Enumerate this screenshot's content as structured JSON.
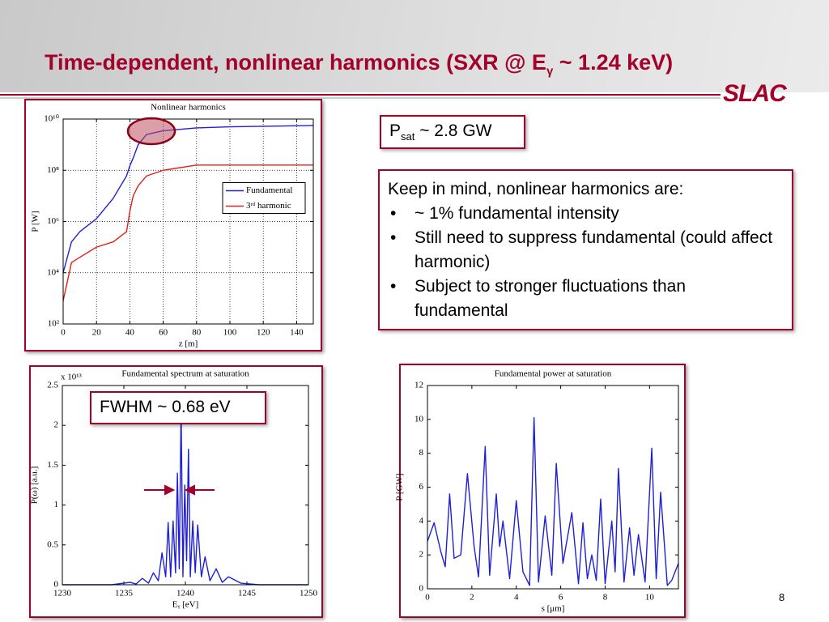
{
  "title": [
    "Time-dependent, nonlinear harmonics (SXR @ E",
    "γ",
    " ~ 1.24 keV)"
  ],
  "logo": "SLAC",
  "psat": [
    "P",
    "sat",
    " ~ 2.8 GW"
  ],
  "notes": {
    "heading": "Keep in mind, nonlinear harmonics are:",
    "bullets": [
      "~ 1% fundamental intensity",
      "Still need to suppress fundamental (could affect harmonic)",
      "Subject to stronger fluctuations than fundamental"
    ]
  },
  "fwhm": "FWHM ~ 0.68 eV",
  "page_number": "8",
  "chart_data": [
    {
      "type": "line",
      "title": "Nonlinear harmonics",
      "x_label": "z [m]",
      "y_label": "P [W]",
      "log_y": true,
      "grid": true,
      "legend": "right",
      "xlim": [
        0,
        150
      ],
      "xticks": [
        0,
        20,
        40,
        60,
        80,
        100,
        120,
        140
      ],
      "ylim": [
        100,
        10000000000
      ],
      "yticks": [
        {
          "value": 100,
          "label": "10²"
        },
        {
          "value": 10000,
          "label": "10⁴"
        },
        {
          "value": 1000000,
          "label": "10⁶"
        },
        {
          "value": 100000000,
          "label": "10⁸"
        },
        {
          "value": 10000000000,
          "label": "10¹⁰"
        }
      ],
      "x": [
        0,
        5,
        10,
        20,
        30,
        38,
        40,
        42,
        45,
        50,
        60,
        80,
        100,
        150
      ],
      "series": [
        {
          "name": "Fundamental",
          "color": "#1f1fd6",
          "values": [
            10000,
            160000,
            400000,
            1300000,
            8000000,
            60000000,
            150000000,
            300000000,
            1000000000,
            2500000000,
            3500000000,
            4500000000,
            5000000000,
            5600000000
          ]
        },
        {
          "name": "3ʳᵈ harmonic",
          "color": "#e0201a",
          "values": [
            800,
            25000,
            40000,
            100000,
            160000,
            400000,
            2500000,
            10000000,
            25000000,
            60000000,
            100000000,
            160000000,
            160000000,
            160000000
          ]
        }
      ]
    },
    {
      "type": "line",
      "title": "Fundamental spectrum at saturation",
      "x_label": "Eᵧ [eV]",
      "y_label": "P(ω) [a.u.]",
      "y_multiplier": "x 10¹³",
      "log_y": false,
      "grid": false,
      "xlim": [
        1230,
        1250
      ],
      "xticks": [
        1230,
        1235,
        1240,
        1245,
        1250
      ],
      "ylim": [
        0,
        2.5
      ],
      "yticks": [
        0,
        0.5,
        1,
        1.5,
        2,
        2.5
      ],
      "x": [
        1230,
        1234,
        1235.5,
        1236,
        1236.5,
        1237,
        1237.4,
        1237.8,
        1238.1,
        1238.4,
        1238.6,
        1238.8,
        1239.0,
        1239.2,
        1239.35,
        1239.5,
        1239.65,
        1239.8,
        1239.95,
        1240.1,
        1240.25,
        1240.4,
        1240.6,
        1240.8,
        1241.0,
        1241.3,
        1241.6,
        1242,
        1242.5,
        1243,
        1243.5,
        1244.5,
        1246,
        1250
      ],
      "series": [
        {
          "color": "#1f1fd6",
          "values": [
            0,
            0,
            0.03,
            0.01,
            0.08,
            0.02,
            0.15,
            0.05,
            0.4,
            0.1,
            0.78,
            0.1,
            0.8,
            0.15,
            1.4,
            0.2,
            2.2,
            0.1,
            1.25,
            0.3,
            1.7,
            0.1,
            0.8,
            0.15,
            0.75,
            0.1,
            0.35,
            0.05,
            0.2,
            0.03,
            0.1,
            0.02,
            0,
            0
          ]
        }
      ]
    },
    {
      "type": "line",
      "title": "Fundamental power at saturation",
      "x_label": "s [μm]",
      "y_label": "P [GW]",
      "log_y": false,
      "grid": false,
      "xlim": [
        0,
        11.3
      ],
      "xticks": [
        0,
        2,
        4,
        6,
        8,
        10
      ],
      "ylim": [
        0,
        12
      ],
      "yticks": [
        0,
        2,
        4,
        6,
        8,
        10,
        12
      ],
      "x": [
        0,
        0.3,
        0.6,
        0.8,
        1.0,
        1.2,
        1.5,
        1.8,
        2.1,
        2.3,
        2.6,
        2.8,
        3.1,
        3.25,
        3.4,
        3.7,
        4.0,
        4.3,
        4.6,
        4.8,
        5.0,
        5.3,
        5.6,
        5.8,
        6.1,
        6.5,
        6.8,
        7.0,
        7.2,
        7.4,
        7.6,
        7.8,
        8.0,
        8.3,
        8.45,
        8.6,
        8.85,
        9.1,
        9.3,
        9.5,
        9.8,
        10.1,
        10.3,
        10.5,
        10.8,
        11.0,
        11.3
      ],
      "series": [
        {
          "color": "#1f1fd6",
          "values": [
            2.8,
            3.9,
            2.2,
            1.3,
            5.6,
            1.8,
            2.0,
            6.8,
            2.5,
            0.7,
            8.4,
            0.8,
            5.6,
            2.5,
            4.0,
            0.6,
            5.2,
            1.0,
            0.2,
            10.1,
            0.4,
            4.3,
            0.8,
            7.4,
            1.5,
            4.5,
            0.3,
            3.9,
            0.6,
            2.0,
            0.5,
            5.3,
            0.3,
            4.0,
            1.0,
            7.1,
            0.4,
            3.6,
            0.8,
            3.2,
            0.4,
            8.3,
            0.6,
            5.7,
            0.2,
            0.5,
            1.5
          ]
        }
      ]
    }
  ]
}
